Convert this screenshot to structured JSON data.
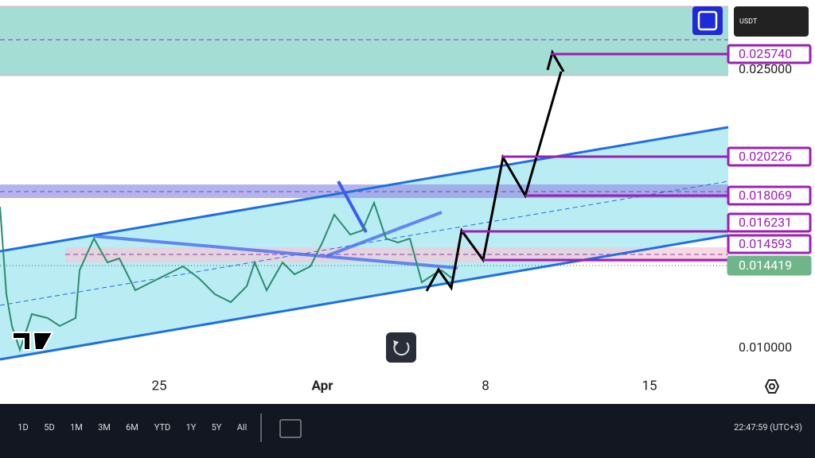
{
  "currency": "USDT",
  "price_labels": [
    {
      "text": "0.025740",
      "style": "purple"
    },
    {
      "text": "0.025000",
      "style": "plain"
    },
    {
      "text": "0.020226",
      "style": "purple"
    },
    {
      "text": "0.018069",
      "style": "purple"
    },
    {
      "text": "0.016231",
      "style": "purple"
    },
    {
      "text": "0.014593",
      "style": "purple"
    },
    {
      "text": "0.014419",
      "style": "green"
    },
    {
      "text": "0.010000",
      "style": "plain"
    }
  ],
  "time_axis": [
    "25",
    "Apr",
    "8",
    "15"
  ],
  "range_buttons": [
    "1D",
    "5D",
    "1M",
    "3M",
    "6M",
    "YTD",
    "1Y",
    "5Y",
    "All"
  ],
  "clock": "22:47:59 (UTC+3)"
}
